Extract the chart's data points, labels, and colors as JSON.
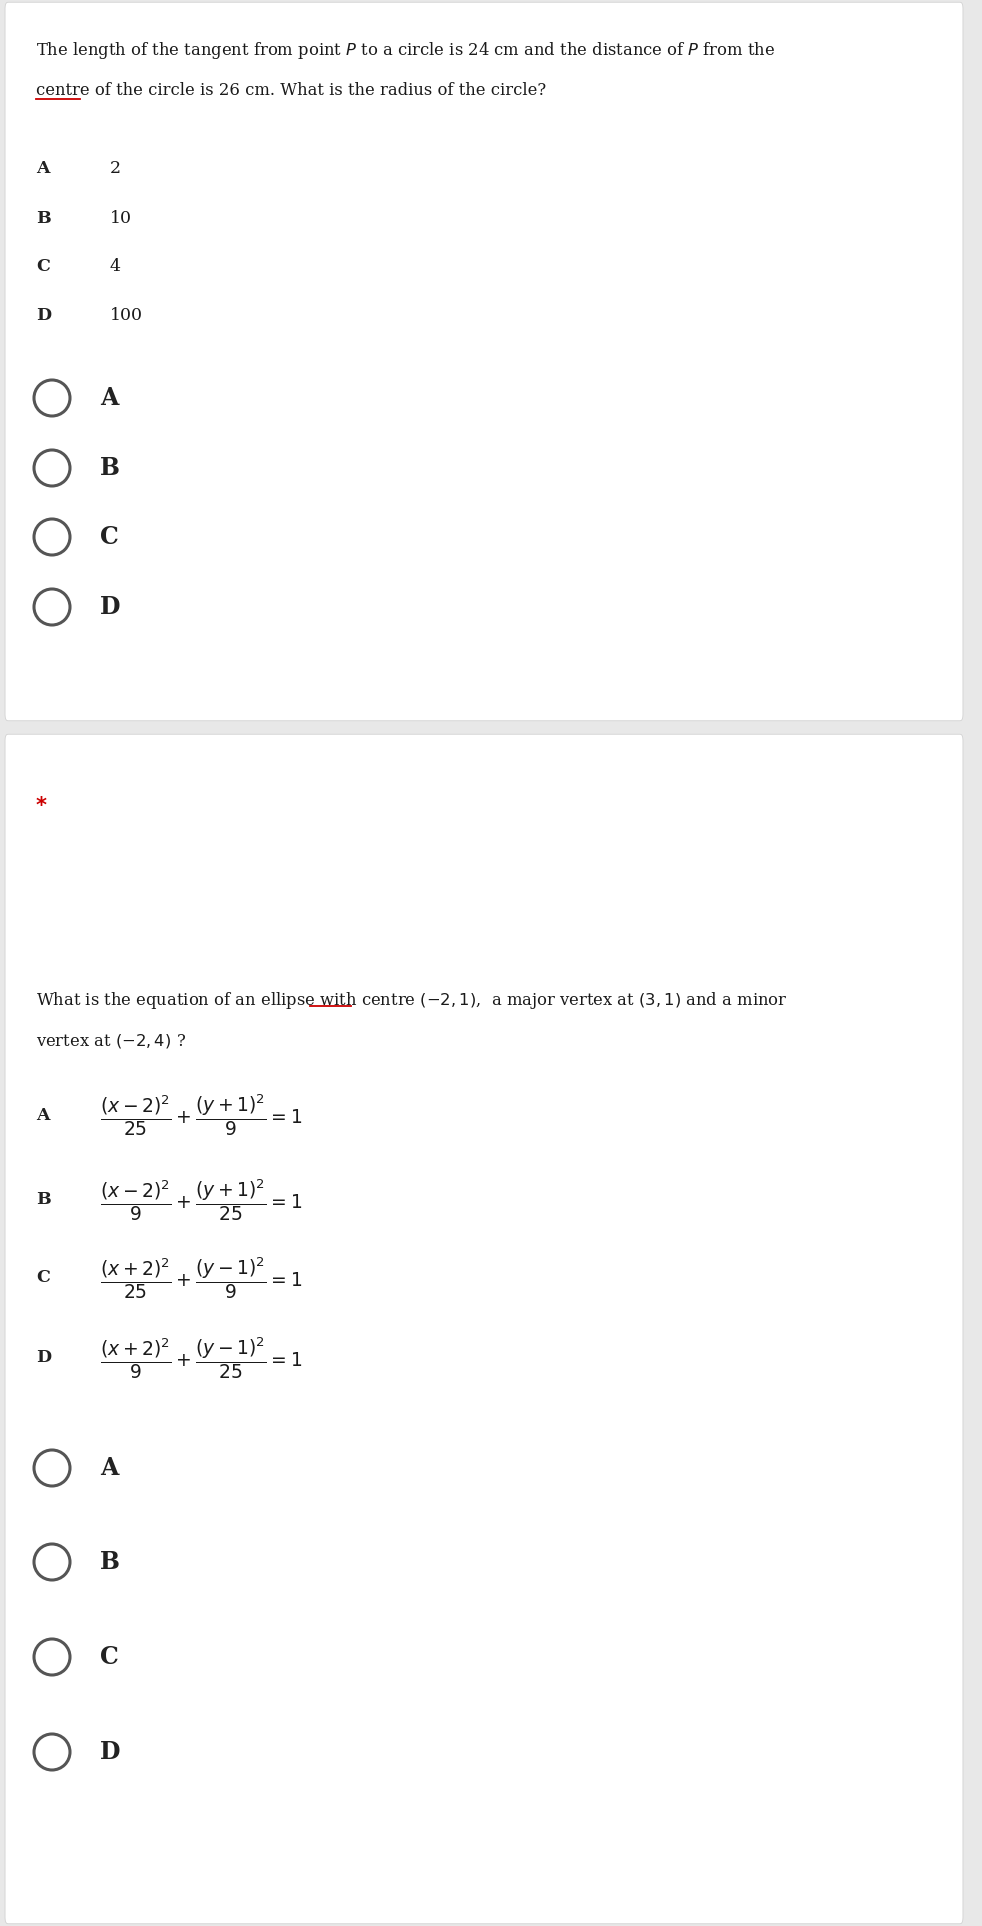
{
  "bg_color": "#e8e8e8",
  "card_bg": "#ffffff",
  "text_color": "#1a1a1a",
  "label_color": "#222222",
  "circle_color": "#555555",
  "star_color": "#cc0000",
  "underline_color": "#cc0000",
  "q1": {
    "question_line1": "The length of the tangent from point $P$ to a circle is 24 cm and the distance of $P$ from the",
    "question_line2": "centre of the circle is 26 cm. What is the radius of the circle?",
    "options": [
      {
        "label": "A",
        "value": "2"
      },
      {
        "label": "B",
        "value": "10"
      },
      {
        "label": "C",
        "value": "4"
      },
      {
        "label": "D",
        "value": "100"
      }
    ],
    "radio_labels": [
      "A",
      "B",
      "C",
      "D"
    ]
  },
  "q2": {
    "question_line1": "What is the equation of an ellipse with centre $(-2,1)$,  a major vertex at $(3,1)$ and a minor",
    "question_line2": "vertex at $(-2,4)$ ?",
    "options": [
      {
        "label": "A",
        "num": "(x-2)^2",
        "den1": "25",
        "plus": "+",
        "num2": "(y+1)^2",
        "den2": "9"
      },
      {
        "label": "B",
        "num": "(x-2)^2",
        "den1": "9",
        "plus": "+",
        "num2": "(y+1)^2",
        "den2": "25"
      },
      {
        "label": "C",
        "num": "(x+2)^2",
        "den1": "25",
        "plus": "+",
        "num2": "(y-1)^2",
        "den2": "9"
      },
      {
        "label": "D",
        "num": "(x+2)^2",
        "den1": "9",
        "plus": "+",
        "num2": "(y-1)^2",
        "den2": "25"
      }
    ],
    "formulas": [
      "$\\dfrac{(x-2)^{2}}{25}+\\dfrac{(y+1)^{2}}{9}=1$",
      "$\\dfrac{(x-2)^{2}}{9}+\\dfrac{(y+1)^{2}}{25}=1$",
      "$\\dfrac{(x+2)^{2}}{25}+\\dfrac{(y-1)^{2}}{9}=1$",
      "$\\dfrac{(x+2)^{2}}{9}+\\dfrac{(y-1)^{2}}{25}=1$"
    ],
    "radio_labels": [
      "A",
      "B",
      "C",
      "D"
    ]
  }
}
